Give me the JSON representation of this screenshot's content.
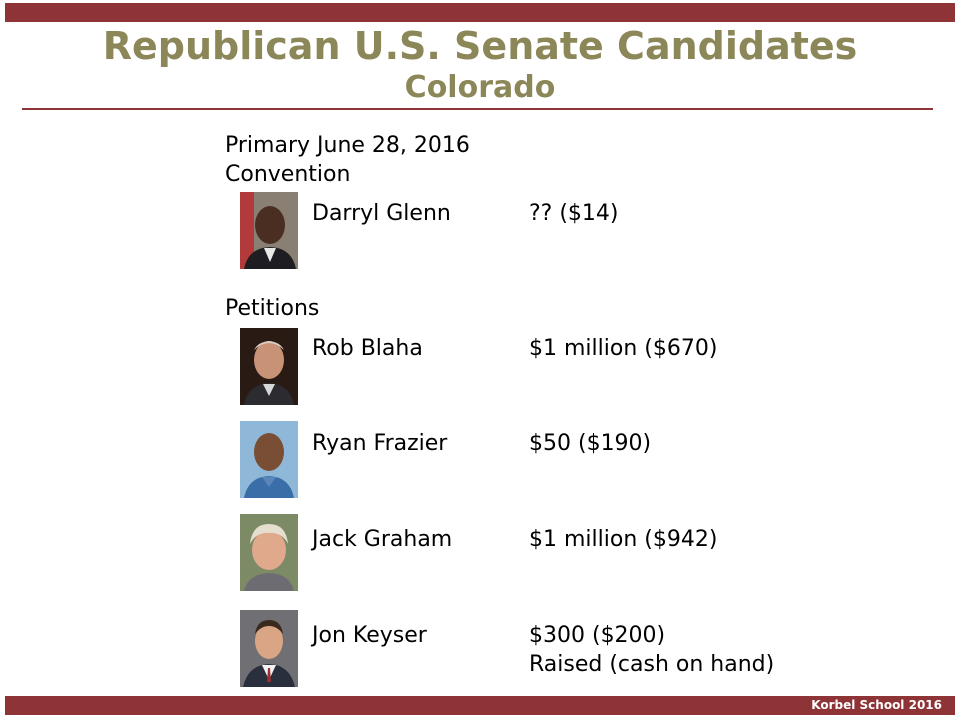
{
  "header": {
    "title": "Republican U.S. Senate Candidates",
    "subtitle": "Colorado"
  },
  "content": {
    "primary_line": "Primary June 28, 2016",
    "convention_heading": "Convention",
    "petitions_heading": "Petitions",
    "candidates": [
      {
        "name": "Darryl Glenn",
        "funds": "?? ($14)"
      },
      {
        "name": "Rob Blaha",
        "funds": "$1 million ($670)"
      },
      {
        "name": "Ryan Frazier",
        "funds": "$50 ($190)"
      },
      {
        "name": "Jack Graham",
        "funds": "$1 million ($942)"
      },
      {
        "name": "Jon Keyser",
        "funds": "$300 ($200)"
      }
    ],
    "legend_note": "Raised (cash on hand)"
  },
  "footer": {
    "label": "Korbel School 2016"
  },
  "colors": {
    "accent_bar": "#8e3437",
    "title_color": "#8c8758"
  },
  "icons": [
    "candidate-photo-icon"
  ]
}
